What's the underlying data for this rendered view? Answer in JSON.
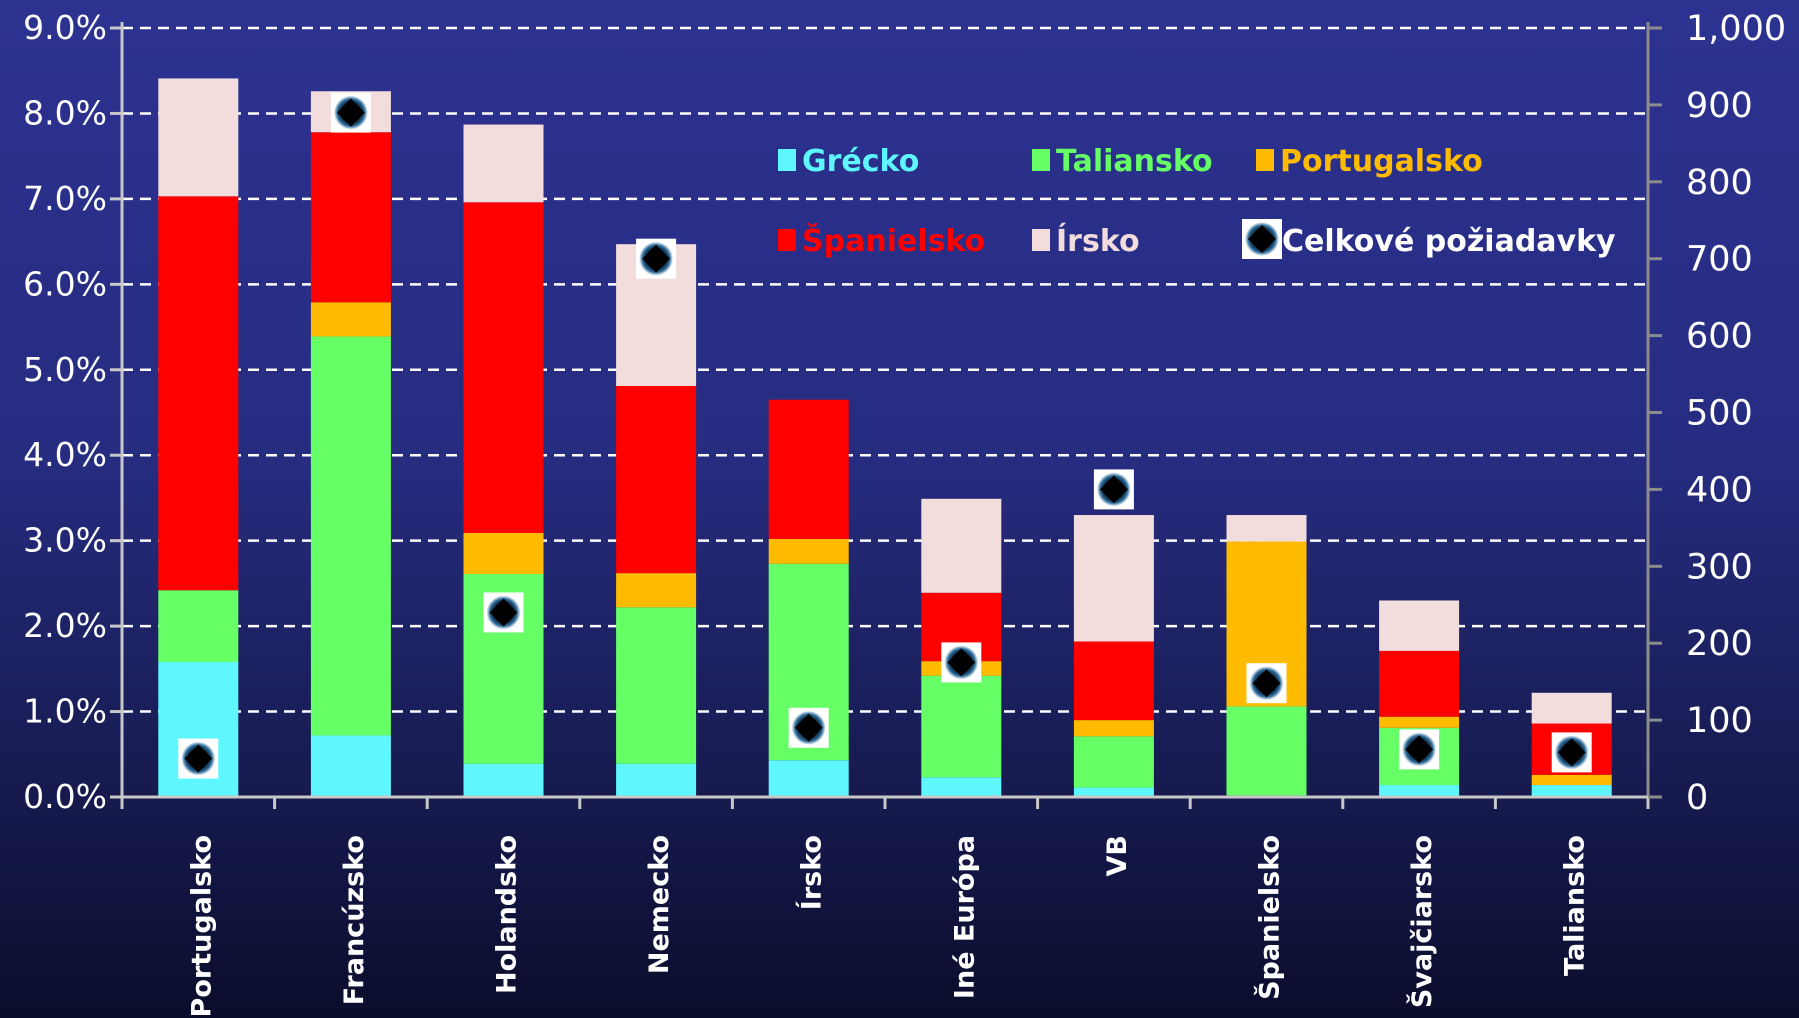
{
  "chart_data": {
    "type": "bar",
    "stacked": true,
    "categories": [
      "Portugalsko",
      "Francúzsko",
      "Holandsko",
      "Nemecko",
      "Írsko",
      "Iné Európa",
      "VB",
      "Španielsko",
      "Švajčiarsko",
      "Taliansko"
    ],
    "y_ticks_left": [
      "0.0%",
      "1.0%",
      "2.0%",
      "3.0%",
      "4.0%",
      "5.0%",
      "6.0%",
      "7.0%",
      "8.0%",
      "9.0%"
    ],
    "y_ticks_right": [
      "0",
      "100",
      "200",
      "300",
      "400",
      "500",
      "600",
      "700",
      "800",
      "900",
      "1,000"
    ],
    "ylim_left": [
      0,
      9
    ],
    "ylim_right": [
      0,
      1000
    ],
    "grid": true,
    "legend_position": "top-right",
    "series": [
      {
        "name": "Grécko",
        "axis": "left",
        "color": "#5ef6ff",
        "values": [
          1.58,
          0.72,
          0.39,
          0.39,
          0.43,
          0.23,
          0.11,
          0.02,
          0.14,
          0.14
        ]
      },
      {
        "name": "Taliansko",
        "axis": "left",
        "color": "#66ff66",
        "values": [
          0.84,
          4.67,
          2.22,
          1.83,
          2.3,
          1.19,
          0.6,
          1.04,
          0.67,
          0.0
        ]
      },
      {
        "name": "Portugalsko",
        "axis": "left",
        "color": "#ffbb00",
        "values": [
          0.0,
          0.4,
          0.48,
          0.4,
          0.29,
          0.17,
          0.19,
          1.93,
          0.13,
          0.12
        ]
      },
      {
        "name": "Španielsko",
        "axis": "left",
        "color": "#ff0000",
        "values": [
          4.61,
          1.99,
          3.87,
          2.19,
          1.63,
          0.8,
          0.92,
          0.0,
          0.77,
          0.6
        ]
      },
      {
        "name": "Írsko",
        "axis": "left",
        "color": "#f2dcdc",
        "values": [
          1.38,
          0.48,
          0.91,
          1.66,
          0.0,
          1.1,
          1.48,
          0.31,
          0.59,
          0.36
        ]
      }
    ],
    "marker_series": {
      "name": "Celkové požiadavky",
      "axis": "right",
      "values": [
        50,
        890,
        240,
        700,
        90,
        175,
        400,
        148,
        62,
        58
      ]
    }
  }
}
